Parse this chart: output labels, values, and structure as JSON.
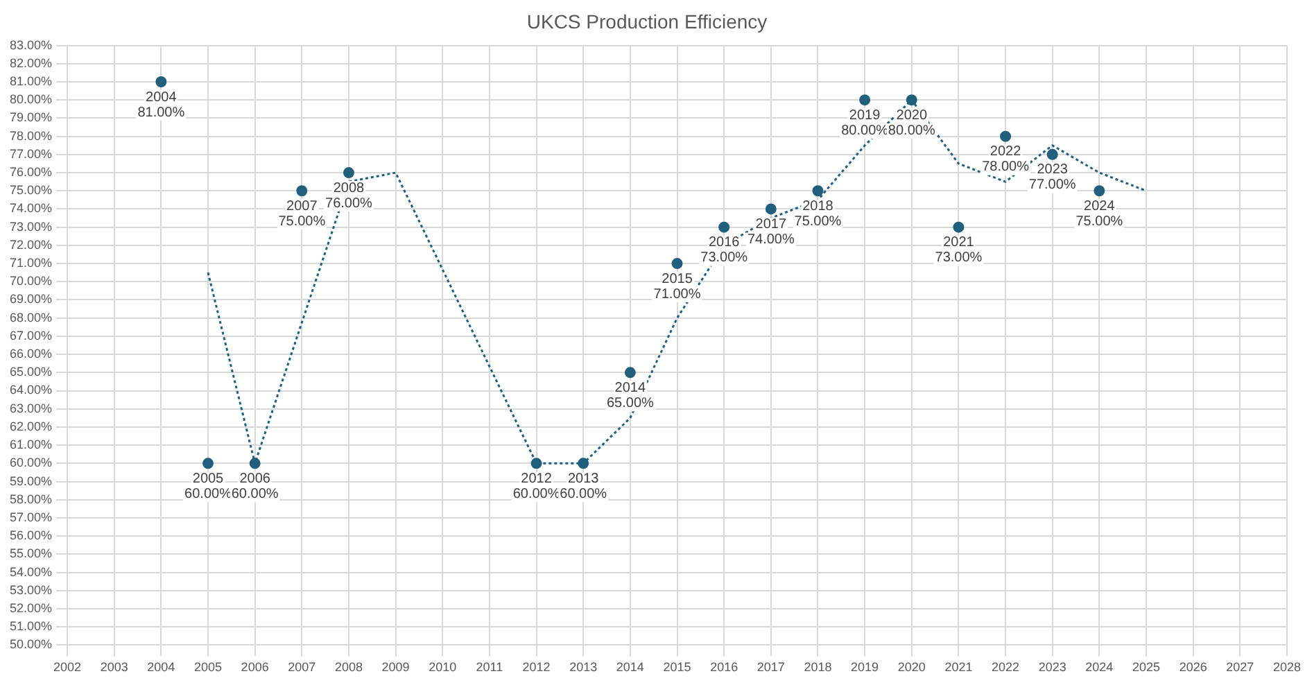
{
  "chart_data": {
    "type": "scatter",
    "title": "UKCS Production Efficiency",
    "grid": true,
    "legend": false,
    "xlim": [
      2002,
      2028
    ],
    "xticks": [
      2002,
      2003,
      2004,
      2005,
      2006,
      2007,
      2008,
      2009,
      2010,
      2011,
      2012,
      2013,
      2014,
      2015,
      2016,
      2017,
      2018,
      2019,
      2020,
      2021,
      2022,
      2023,
      2024,
      2025,
      2026,
      2027,
      2028
    ],
    "ylim": [
      50,
      83
    ],
    "yticks": [
      {
        "value": 50,
        "label": "50.00%"
      },
      {
        "value": 51,
        "label": "51.00%"
      },
      {
        "value": 52,
        "label": "52.00%"
      },
      {
        "value": 53,
        "label": "53.00%"
      },
      {
        "value": 54,
        "label": "54.00%"
      },
      {
        "value": 55,
        "label": "55.00%"
      },
      {
        "value": 56,
        "label": "56.00%"
      },
      {
        "value": 57,
        "label": "57.00%"
      },
      {
        "value": 58,
        "label": "58.00%"
      },
      {
        "value": 59,
        "label": "59.00%"
      },
      {
        "value": 60,
        "label": "60.00%"
      },
      {
        "value": 61,
        "label": "61.00%"
      },
      {
        "value": 62,
        "label": "62.00%"
      },
      {
        "value": 63,
        "label": "63.00%"
      },
      {
        "value": 64,
        "label": "64.00%"
      },
      {
        "value": 65,
        "label": "65.00%"
      },
      {
        "value": 66,
        "label": "66.00%"
      },
      {
        "value": 67,
        "label": "67.00%"
      },
      {
        "value": 68,
        "label": "68.00%"
      },
      {
        "value": 69,
        "label": "69.00%"
      },
      {
        "value": 70,
        "label": "70.00%"
      },
      {
        "value": 71,
        "label": "71.00%"
      },
      {
        "value": 72,
        "label": "72.00%"
      },
      {
        "value": 73,
        "label": "73.00%"
      },
      {
        "value": 74,
        "label": "74.00%"
      },
      {
        "value": 75,
        "label": "75.00%"
      },
      {
        "value": 76,
        "label": "76.00%"
      },
      {
        "value": 77,
        "label": "77.00%"
      },
      {
        "value": 78,
        "label": "78.00%"
      },
      {
        "value": 79,
        "label": "79.00%"
      },
      {
        "value": 80,
        "label": "80.00%"
      },
      {
        "value": 81,
        "label": "81.00%"
      },
      {
        "value": 82,
        "label": "82.00%"
      },
      {
        "value": 83,
        "label": "83.00%"
      }
    ],
    "series": [
      {
        "type": "scatter",
        "color": "#215f7c",
        "marker": "circle",
        "x": [
          2004,
          2005,
          2006,
          2007,
          2008,
          2012,
          2013,
          2014,
          2015,
          2016,
          2017,
          2018,
          2019,
          2020,
          2021,
          2022,
          2023,
          2024
        ],
        "values": [
          81,
          60,
          60,
          75,
          76,
          60,
          60,
          65,
          71,
          73,
          74,
          75,
          80,
          80,
          73,
          78,
          77,
          75
        ],
        "value_labels": [
          "2004\n81.00%",
          "2005\n60.00%",
          "2006\n60.00%",
          "2007\n75.00%",
          "2008\n76.00%",
          "2012\n60.00%",
          "2013\n60.00%",
          "2014\n65.00%",
          "2015\n71.00%",
          "2016\n73.00%",
          "2017\n74.00%",
          "2018\n75.00%",
          "2019\n80.00%",
          "2020\n80.00%",
          "2021\n73.00%",
          "2022\n78.00%",
          "2023\n77.00%",
          "2024\n75.00%"
        ]
      },
      {
        "type": "line",
        "color": "#215f7c",
        "marker": "none",
        "line_style": "dotted",
        "x": [
          2005,
          2006,
          2008,
          2009,
          2012,
          2013,
          2014,
          2015,
          2016,
          2017,
          2018,
          2019,
          2020,
          2021,
          2022,
          2023,
          2024,
          2025
        ],
        "values": [
          70.5,
          60,
          75.5,
          76,
          60,
          60,
          62.5,
          68,
          72,
          73.5,
          74.5,
          77.5,
          80,
          76.5,
          75.5,
          77.5,
          76,
          75
        ]
      }
    ]
  }
}
